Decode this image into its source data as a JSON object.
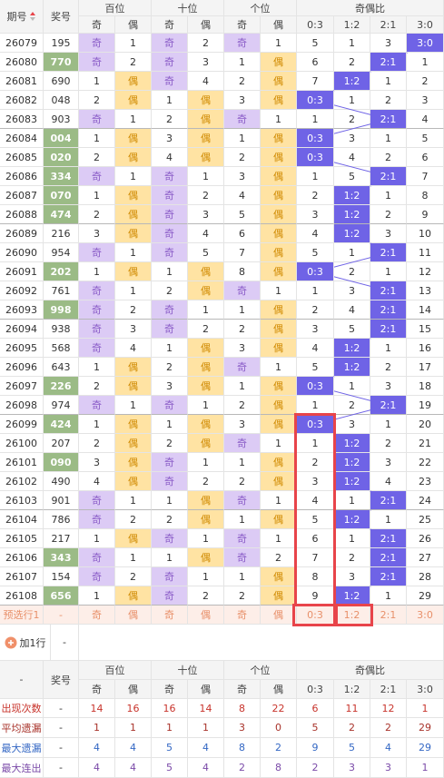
{
  "header": {
    "period": "期号",
    "number": "奖号",
    "groups": [
      "百位",
      "十位",
      "个位",
      "奇偶比"
    ],
    "sub": [
      "奇",
      "偶",
      "奇",
      "偶",
      "奇",
      "偶",
      "0:3",
      "1:2",
      "2:1",
      "3:0"
    ]
  },
  "rows": [
    [
      "26079",
      "195",
      "奇",
      1,
      "奇",
      2,
      "奇",
      1,
      5,
      1,
      3,
      "3:0"
    ],
    [
      "26080",
      "770",
      "奇",
      2,
      "奇",
      3,
      1,
      "偶",
      6,
      2,
      "2:1",
      1
    ],
    [
      "26081",
      "690",
      1,
      "偶",
      "奇",
      4,
      2,
      "偶",
      7,
      "1:2",
      1,
      2
    ],
    [
      "26082",
      "048",
      2,
      "偶",
      1,
      "偶",
      3,
      "偶",
      "0:3",
      1,
      2,
      3
    ],
    [
      "26083",
      "903",
      "奇",
      1,
      2,
      "偶",
      "奇",
      1,
      1,
      2,
      "2:1",
      4
    ],
    [
      "26084",
      "004",
      1,
      "偶",
      3,
      "偶",
      1,
      "偶",
      "0:3",
      3,
      1,
      5
    ],
    [
      "26085",
      "020",
      2,
      "偶",
      4,
      "偶",
      2,
      "偶",
      "0:3",
      4,
      2,
      6
    ],
    [
      "26086",
      "334",
      "奇",
      1,
      "奇",
      1,
      3,
      "偶",
      1,
      5,
      "2:1",
      7
    ],
    [
      "26087",
      "070",
      1,
      "偶",
      "奇",
      2,
      4,
      "偶",
      2,
      "1:2",
      1,
      8
    ],
    [
      "26088",
      "474",
      2,
      "偶",
      "奇",
      3,
      5,
      "偶",
      3,
      "1:2",
      2,
      9
    ],
    [
      "26089",
      "216",
      3,
      "偶",
      "奇",
      4,
      6,
      "偶",
      4,
      "1:2",
      3,
      10
    ],
    [
      "26090",
      "954",
      "奇",
      1,
      "奇",
      5,
      7,
      "偶",
      5,
      1,
      "2:1",
      11
    ],
    [
      "26091",
      "202",
      1,
      "偶",
      1,
      "偶",
      8,
      "偶",
      "0:3",
      2,
      1,
      12
    ],
    [
      "26092",
      "761",
      "奇",
      1,
      2,
      "偶",
      "奇",
      1,
      1,
      3,
      "2:1",
      13
    ],
    [
      "26093",
      "998",
      "奇",
      2,
      "奇",
      1,
      1,
      "偶",
      2,
      4,
      "2:1",
      14
    ],
    [
      "26094",
      "938",
      "奇",
      3,
      "奇",
      2,
      2,
      "偶",
      3,
      5,
      "2:1",
      15
    ],
    [
      "26095",
      "568",
      "奇",
      4,
      1,
      "偶",
      3,
      "偶",
      4,
      "1:2",
      1,
      16
    ],
    [
      "26096",
      "643",
      1,
      "偶",
      2,
      "偶",
      "奇",
      1,
      5,
      "1:2",
      2,
      17
    ],
    [
      "26097",
      "226",
      2,
      "偶",
      3,
      "偶",
      1,
      "偶",
      "0:3",
      1,
      3,
      18
    ],
    [
      "26098",
      "974",
      "奇",
      1,
      "奇",
      1,
      2,
      "偶",
      1,
      2,
      "2:1",
      19
    ],
    [
      "26099",
      "424",
      1,
      "偶",
      1,
      "偶",
      3,
      "偶",
      "0:3",
      3,
      1,
      20
    ],
    [
      "26100",
      "207",
      2,
      "偶",
      2,
      "偶",
      "奇",
      1,
      1,
      "1:2",
      2,
      21
    ],
    [
      "26101",
      "090",
      3,
      "偶",
      "奇",
      1,
      1,
      "偶",
      2,
      "1:2",
      3,
      22
    ],
    [
      "26102",
      "490",
      4,
      "偶",
      "奇",
      2,
      2,
      "偶",
      3,
      "1:2",
      4,
      23
    ],
    [
      "26103",
      "901",
      "奇",
      1,
      1,
      "偶",
      "奇",
      1,
      4,
      1,
      "2:1",
      24
    ],
    [
      "26104",
      "786",
      "奇",
      2,
      2,
      "偶",
      1,
      "偶",
      5,
      "1:2",
      1,
      25
    ],
    [
      "26105",
      "217",
      1,
      "偶",
      "奇",
      1,
      "奇",
      1,
      6,
      1,
      "2:1",
      26
    ],
    [
      "26106",
      "343",
      "奇",
      1,
      1,
      "偶",
      "奇",
      2,
      7,
      2,
      "2:1",
      27
    ],
    [
      "26107",
      "154",
      "奇",
      2,
      "奇",
      1,
      1,
      "偶",
      8,
      3,
      "2:1",
      28
    ],
    [
      "26108",
      "656",
      1,
      "偶",
      "奇",
      2,
      2,
      "偶",
      9,
      "1:2",
      1,
      29
    ]
  ],
  "preview": {
    "label": "预选行1",
    "number": "-",
    "cells": [
      "奇",
      "偶",
      "奇",
      "偶",
      "奇",
      "偶",
      "0:3",
      "1:2",
      "2:1",
      "3:0"
    ]
  },
  "add_row": {
    "label": "加1行",
    "value": "-"
  },
  "footer_header": {
    "period": "-",
    "number": "奖号",
    "groups": [
      "百位",
      "十位",
      "个位",
      "奇偶比"
    ],
    "sub": [
      "奇",
      "偶",
      "奇",
      "偶",
      "奇",
      "偶",
      "0:3",
      "1:2",
      "2:1",
      "3:0"
    ]
  },
  "stats": [
    {
      "label": "出现次数",
      "number": "-",
      "values": [
        14,
        16,
        16,
        14,
        8,
        22,
        6,
        11,
        12,
        1
      ]
    },
    {
      "label": "平均遗漏",
      "number": "-",
      "values": [
        1,
        1,
        1,
        1,
        3,
        0,
        5,
        2,
        2,
        29
      ]
    },
    {
      "label": "最大遗漏",
      "number": "-",
      "values": [
        4,
        4,
        5,
        4,
        8,
        2,
        9,
        5,
        4,
        29
      ]
    },
    {
      "label": "最大连出",
      "number": "-",
      "values": [
        4,
        4,
        5,
        4,
        2,
        8,
        2,
        3,
        3,
        1
      ]
    }
  ]
}
